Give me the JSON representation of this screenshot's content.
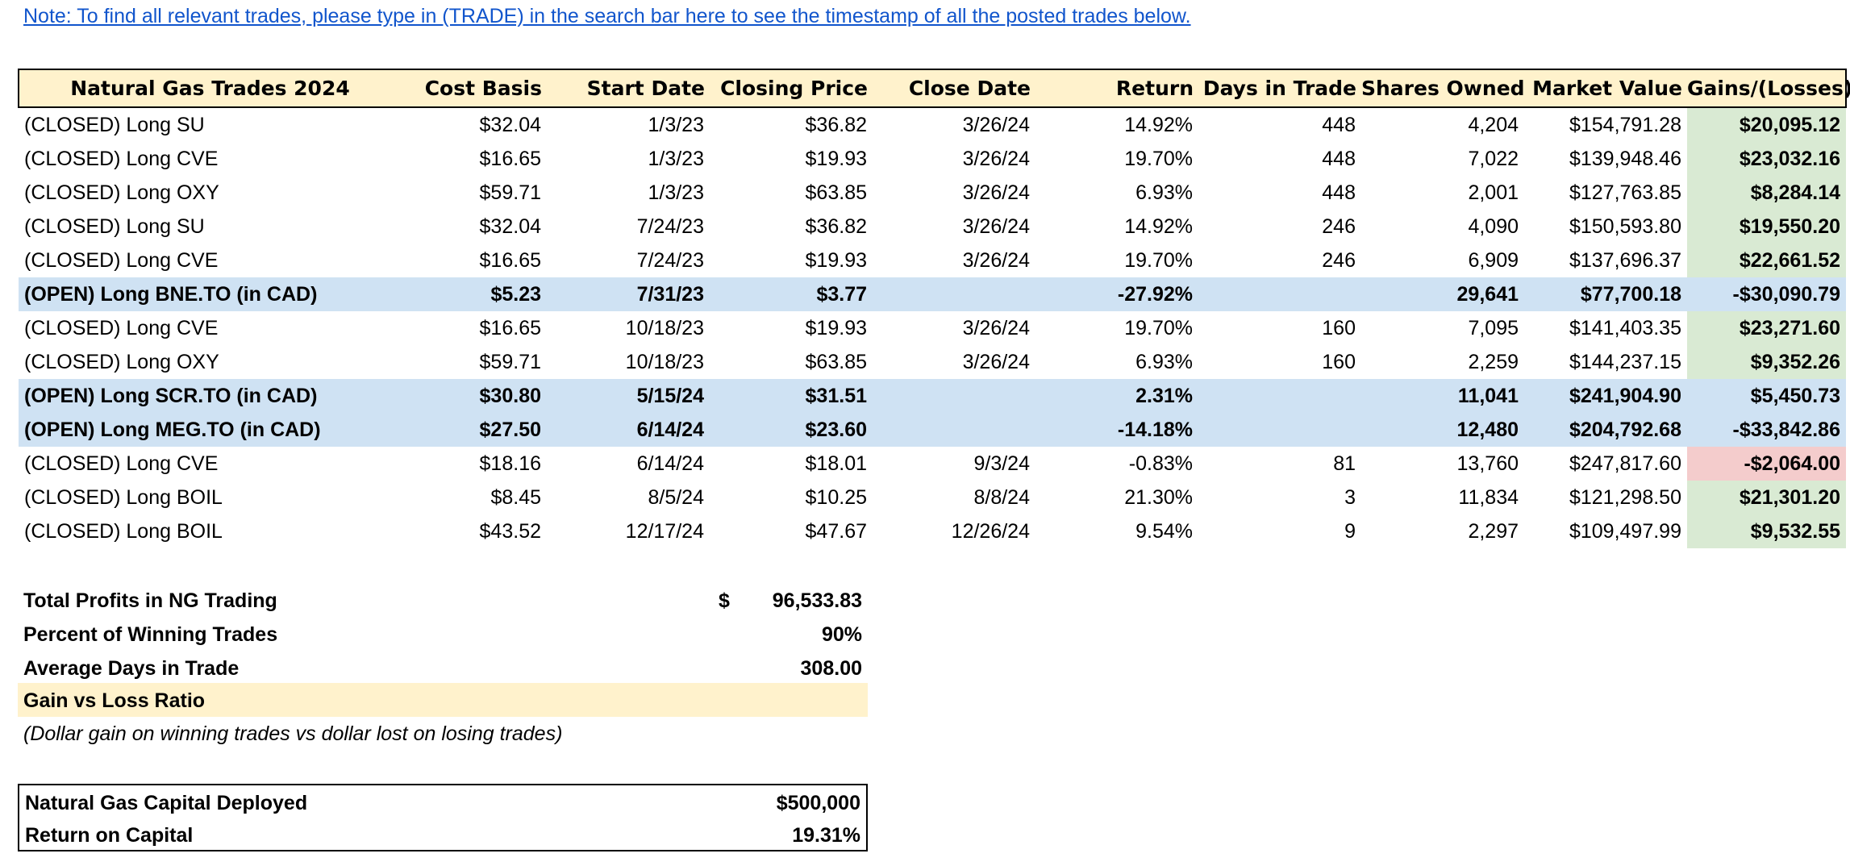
{
  "note": "Note: To find all relevant trades, please type in (TRADE) in the search bar here to see the timestamp of all the posted trades below.",
  "table": {
    "headers": [
      "Natural Gas Trades 2024",
      "Cost Basis",
      "Start Date",
      "Closing Price",
      "Close Date",
      "Return",
      "Days in Trade",
      "Shares Owned",
      "Market Value",
      "Gains/(Losses)"
    ],
    "rows": [
      {
        "name": "(CLOSED) Long SU",
        "cost": "$32.04",
        "start": "1/3/23",
        "close_price": "$36.82",
        "close_date": "3/26/24",
        "ret": "14.92%",
        "days": "448",
        "shares": "4,204",
        "mv": "$154,791.28",
        "gain": "$20,095.12"
      },
      {
        "name": "(CLOSED) Long CVE",
        "cost": "$16.65",
        "start": "1/3/23",
        "close_price": "$19.93",
        "close_date": "3/26/24",
        "ret": "19.70%",
        "days": "448",
        "shares": "7,022",
        "mv": "$139,948.46",
        "gain": "$23,032.16"
      },
      {
        "name": "(CLOSED) Long OXY",
        "cost": "$59.71",
        "start": "1/3/23",
        "close_price": "$63.85",
        "close_date": "3/26/24",
        "ret": "6.93%",
        "days": "448",
        "shares": "2,001",
        "mv": "$127,763.85",
        "gain": "$8,284.14"
      },
      {
        "name": "(CLOSED) Long SU",
        "cost": "$32.04",
        "start": "7/24/23",
        "close_price": "$36.82",
        "close_date": "3/26/24",
        "ret": "14.92%",
        "days": "246",
        "shares": "4,090",
        "mv": "$150,593.80",
        "gain": "$19,550.20"
      },
      {
        "name": "(CLOSED) Long CVE",
        "cost": "$16.65",
        "start": "7/24/23",
        "close_price": "$19.93",
        "close_date": "3/26/24",
        "ret": "19.70%",
        "days": "246",
        "shares": "6,909",
        "mv": "$137,696.37",
        "gain": "$22,661.52"
      },
      {
        "name": "(OPEN) Long BNE.TO (in CAD)",
        "cost": "$5.23",
        "start": "7/31/23",
        "close_price": "$3.77",
        "close_date": "",
        "ret": "-27.92%",
        "days": "",
        "shares": "29,641",
        "mv": "$77,700.18",
        "gain": "-$30,090.79"
      },
      {
        "name": "(CLOSED) Long CVE",
        "cost": "$16.65",
        "start": "10/18/23",
        "close_price": "$19.93",
        "close_date": "3/26/24",
        "ret": "19.70%",
        "days": "160",
        "shares": "7,095",
        "mv": "$141,403.35",
        "gain": "$23,271.60"
      },
      {
        "name": "(CLOSED) Long OXY",
        "cost": "$59.71",
        "start": "10/18/23",
        "close_price": "$63.85",
        "close_date": "3/26/24",
        "ret": "6.93%",
        "days": "160",
        "shares": "2,259",
        "mv": "$144,237.15",
        "gain": "$9,352.26"
      },
      {
        "name": "(OPEN) Long SCR.TO (in CAD)",
        "cost": "$30.80",
        "start": "5/15/24",
        "close_price": "$31.51",
        "close_date": "",
        "ret": "2.31%",
        "days": "",
        "shares": "11,041",
        "mv": "$241,904.90",
        "gain": "$5,450.73"
      },
      {
        "name": "(OPEN) Long MEG.TO (in CAD)",
        "cost": "$27.50",
        "start": "6/14/24",
        "close_price": "$23.60",
        "close_date": "",
        "ret": "-14.18%",
        "days": "",
        "shares": "12,480",
        "mv": "$204,792.68",
        "gain": "-$33,842.86"
      },
      {
        "name": "(CLOSED) Long CVE",
        "cost": "$18.16",
        "start": "6/14/24",
        "close_price": "$18.01",
        "close_date": "9/3/24",
        "ret": "-0.83%",
        "days": "81",
        "shares": "13,760",
        "mv": "$247,817.60",
        "gain": "-$2,064.00"
      },
      {
        "name": "(CLOSED) Long BOIL",
        "cost": "$8.45",
        "start": "8/5/24",
        "close_price": "$10.25",
        "close_date": "8/8/24",
        "ret": "21.30%",
        "days": "3",
        "shares": "11,834",
        "mv": "$121,298.50",
        "gain": "$21,301.20"
      },
      {
        "name": "(CLOSED) Long BOIL",
        "cost": "$43.52",
        "start": "12/17/24",
        "close_price": "$47.67",
        "close_date": "12/26/24",
        "ret": "9.54%",
        "days": "9",
        "shares": "2,297",
        "mv": "$109,497.99",
        "gain": "$9,532.55"
      }
    ]
  },
  "summary": {
    "total_profits_label": "Total Profits in NG Trading",
    "total_profits_currency": "$",
    "total_profits_value": "96,533.83",
    "win_pct_label": "Percent of Winning Trades",
    "win_pct_value": "90%",
    "avg_days_label": "Average Days in Trade",
    "avg_days_value": "308.00",
    "gain_loss_label": "Gain vs Loss Ratio",
    "gain_loss_note": "(Dollar gain on winning trades vs dollar lost on losing trades)"
  },
  "capital": {
    "deployed_label": "Natural Gas Capital Deployed",
    "deployed_value": "$500,000",
    "roc_label": "Return on Capital",
    "roc_value": "19.31%"
  },
  "colors": {
    "header_bg": "#fff2cc",
    "open_row_bg": "#cfe2f3",
    "gain_bg": "#d9ead3",
    "loss_bg": "#f4cccc",
    "link": "#1155cc"
  }
}
